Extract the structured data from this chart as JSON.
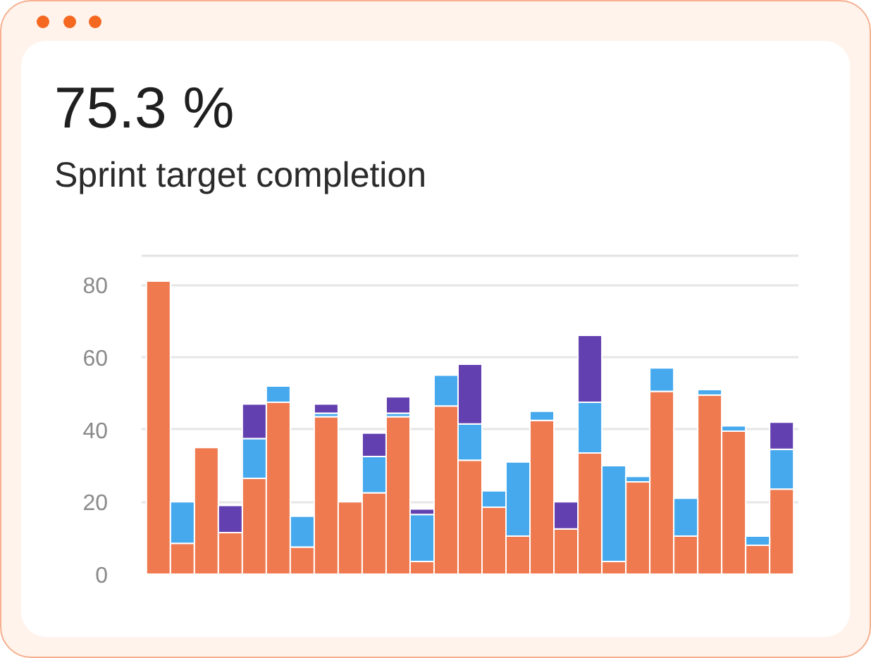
{
  "chart_data": {
    "type": "bar",
    "title": "75.3 %",
    "subtitle": "Sprint target completion",
    "categories": [
      null,
      null,
      null,
      null,
      null,
      null,
      null,
      null,
      null,
      null,
      null,
      null,
      null,
      null,
      null,
      null,
      null,
      null,
      null,
      null,
      null,
      null,
      null,
      null,
      null,
      null,
      null
    ],
    "stacked": true,
    "series": [
      {
        "color": "#ef7a50",
        "values": [
          81,
          8.5,
          35,
          11.5,
          26.5,
          47.5,
          7.5,
          43.5,
          20,
          22.5,
          43.5,
          3.5,
          46.5,
          31.5,
          18.5,
          10.5,
          42.5,
          12.5,
          33.5,
          3.5,
          25.5,
          50.5,
          10.5,
          49.5,
          39.5,
          8,
          23.5
        ]
      },
      {
        "color": "#46a9ee",
        "values": [
          null,
          11.5,
          null,
          null,
          11,
          4.5,
          8.5,
          1,
          null,
          10,
          1,
          13,
          8.5,
          10,
          4.5,
          20.5,
          2.5,
          null,
          14,
          26.5,
          1.5,
          6.5,
          10.5,
          1.5,
          1.5,
          2.5,
          11
        ]
      },
      {
        "color": "#6340b0",
        "values": [
          null,
          null,
          null,
          7.5,
          9.5,
          null,
          null,
          2.5,
          null,
          6.5,
          4.5,
          1.5,
          null,
          16.5,
          null,
          null,
          null,
          7.5,
          18.5,
          null,
          null,
          null,
          null,
          null,
          null,
          null,
          7.5
        ]
      }
    ],
    "ylim": [
      0,
      88
    ],
    "yticks": [
      0,
      20,
      40,
      60,
      80
    ],
    "grid": "y",
    "tick_labels": "y"
  }
}
